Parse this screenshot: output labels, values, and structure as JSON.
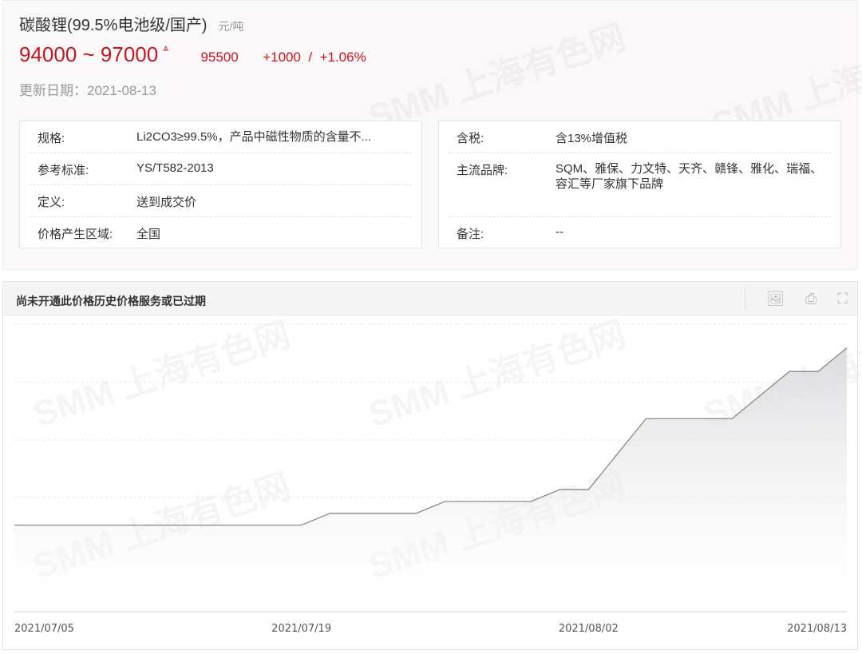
{
  "header": {
    "title": "碳酸锂(99.5%电池级/国产)",
    "unit": "元/吨",
    "price_range": "94000 ~ 97000",
    "trend_icon": "up-arrow-icon",
    "average": "95500",
    "change": "+1000  /  +1.06%",
    "update_date": "更新日期：2021-08-13",
    "accent_color": "#c8141e"
  },
  "specs_left": [
    {
      "label": "规格:",
      "value": "Li2CO3≥99.5%，产品中磁性物质的含量不..."
    },
    {
      "label": "参考标准:",
      "value": "YS/T582-2013"
    },
    {
      "label": "定义:",
      "value": "送到成交价"
    },
    {
      "label": "价格产生区域:",
      "value": "全国"
    }
  ],
  "specs_right": [
    {
      "label": "含税:",
      "value": "含13%增值税"
    },
    {
      "label": "主流品牌:",
      "value": "SQM、雅保、力文特、天齐、赣锋、雅化、瑞福、容汇等厂家旗下品牌"
    },
    {
      "label": "备注:",
      "value": "--"
    }
  ],
  "chart_panel": {
    "title": "尚未开通此价格历史价格服务或已过期",
    "tools": [
      "download-image-icon",
      "print-icon",
      "fullscreen-icon"
    ]
  },
  "watermark": "SMM 上海有色网",
  "chart_data": {
    "type": "area",
    "title": "",
    "xlabel": "",
    "ylabel": "",
    "x_ticks": [
      "2021/07/05",
      "2021/07/19",
      "2021/08/02",
      "2021/08/13"
    ],
    "x_tick_index": [
      0,
      10,
      20,
      29
    ],
    "values": [
      88000,
      88000,
      88000,
      88000,
      88000,
      88000,
      88000,
      88000,
      88000,
      88000,
      88000,
      88500,
      88500,
      88500,
      88500,
      89000,
      89000,
      89000,
      89000,
      89500,
      89500,
      91000,
      92500,
      92500,
      92500,
      92500,
      93500,
      94500,
      94500,
      95500
    ],
    "ylim": [
      84000,
      96500
    ],
    "grid": true,
    "line_color": "#888888",
    "fill_color": "#d8d8dc"
  }
}
